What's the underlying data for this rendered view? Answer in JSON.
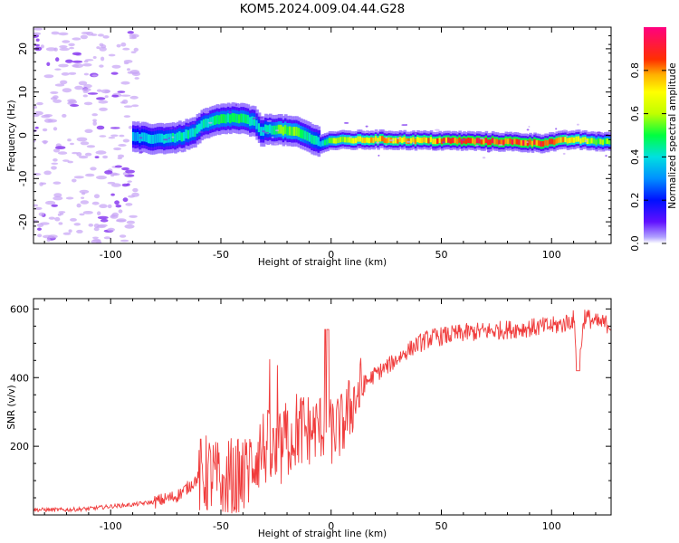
{
  "title": "KOM5.2024.009.04.44.G28",
  "chart_data": [
    {
      "type": "heatmap",
      "id": "spectrum",
      "xlabel": "Height of straight line (km)",
      "ylabel": "Frequency (Hz)",
      "xlim": [
        -135,
        127
      ],
      "ylim": [
        -25,
        25
      ],
      "xticks": [
        -100,
        -50,
        0,
        50,
        100
      ],
      "yticks": [
        -20,
        -10,
        0,
        10,
        20
      ],
      "colorbar": {
        "label": "Normalized spectral amplitude",
        "range": [
          0,
          1
        ],
        "ticks": [
          "0.0",
          "0.2",
          "0.4",
          "0.6",
          "0.8"
        ]
      },
      "ridge": {
        "x": [
          -90,
          -80,
          -70,
          -63,
          -58,
          -52,
          -46,
          -40,
          -35,
          -32,
          -28,
          -22,
          -15,
          -10,
          -5,
          0,
          20,
          40,
          60,
          80,
          95,
          100,
          110,
          120,
          127
        ],
        "freq": [
          -0.5,
          -0.8,
          -0.5,
          0.5,
          2.5,
          3.5,
          4.0,
          3.8,
          3.0,
          1.0,
          1.5,
          1.2,
          0.6,
          -0.5,
          -1.8,
          -1.2,
          -1.0,
          -1.2,
          -1.3,
          -1.5,
          -1.8,
          -1.5,
          -1.0,
          -1.4,
          -1.5
        ],
        "amplitude": [
          0.35,
          0.4,
          0.45,
          0.45,
          0.45,
          0.5,
          0.5,
          0.5,
          0.45,
          0.4,
          0.45,
          0.6,
          0.55,
          0.45,
          0.4,
          0.6,
          0.8,
          0.8,
          0.9,
          0.9,
          0.9,
          0.85,
          0.75,
          0.6,
          0.55
        ]
      },
      "noise_region": {
        "x_from": -135,
        "x_to": -88,
        "amplitude": 0.1
      }
    },
    {
      "type": "line",
      "id": "snr",
      "xlabel": "Height of straight line (km)",
      "ylabel": "SNR (v/v)",
      "xlim": [
        -135,
        127
      ],
      "ylim": [
        0,
        630
      ],
      "xticks": [
        -100,
        -50,
        0,
        50,
        100
      ],
      "yticks": [
        200,
        400,
        600
      ],
      "color": "#f03c3c",
      "series": [
        {
          "x": [
            -135,
            -120,
            -110,
            -100,
            -90,
            -80,
            -70,
            -65,
            -60,
            -55,
            -50,
            -45,
            -40,
            -35,
            -30,
            -25,
            -20,
            -15,
            -10,
            -5,
            0,
            5,
            10,
            15,
            20,
            25,
            30,
            35,
            40,
            45,
            50,
            55,
            60,
            70,
            80,
            90,
            100,
            105,
            110,
            112,
            115,
            120,
            127
          ],
          "values": [
            15,
            15,
            18,
            25,
            30,
            38,
            55,
            80,
            110,
            120,
            90,
            110,
            100,
            170,
            200,
            160,
            220,
            250,
            240,
            260,
            240,
            260,
            330,
            380,
            410,
            430,
            455,
            480,
            500,
            515,
            520,
            525,
            530,
            535,
            540,
            545,
            550,
            555,
            570,
            430,
            580,
            560,
            555
          ]
        }
      ]
    }
  ]
}
